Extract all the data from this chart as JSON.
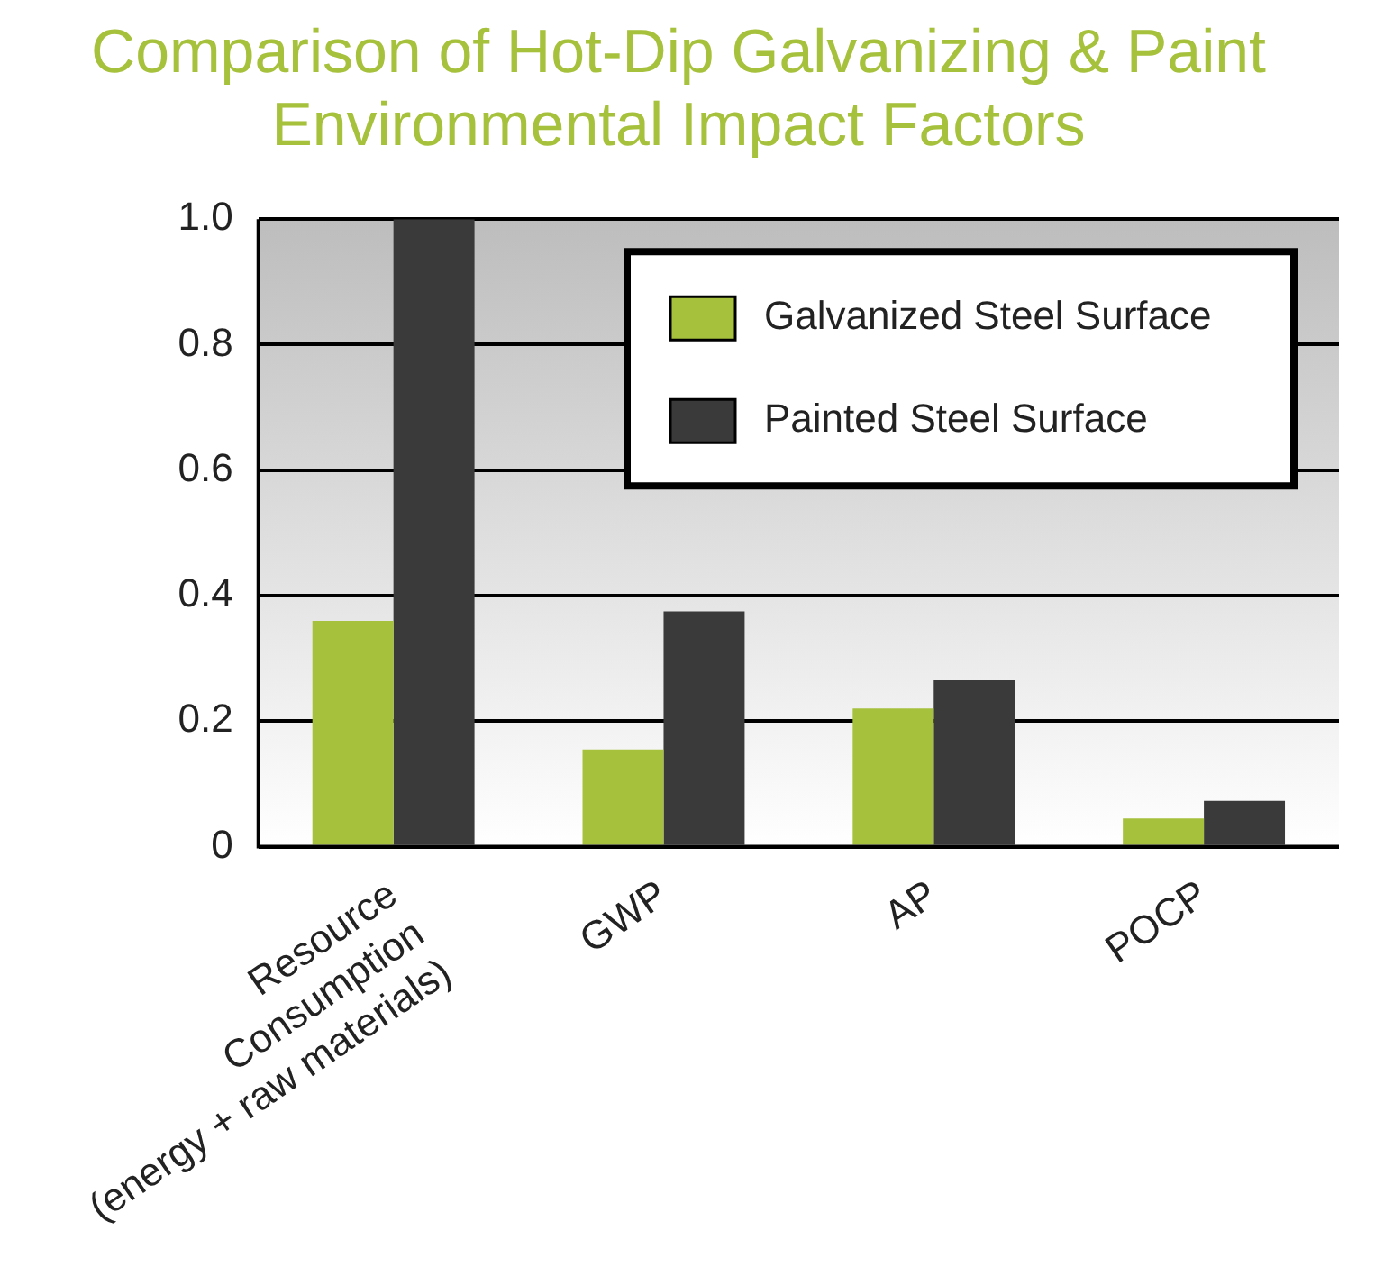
{
  "chart_data": {
    "type": "bar",
    "title": "Comparison of Hot-Dip Galvanizing & Paint\nEnvironmental Impact Factors",
    "categories": [
      "Resource\nConsumption\n(energy + raw materials)",
      "GWP",
      "AP",
      "POCP"
    ],
    "series": [
      {
        "name": "Galvanized Steel Surface",
        "color": "#a6c13c",
        "values": [
          0.36,
          0.155,
          0.22,
          0.045
        ]
      },
      {
        "name": "Painted Steel Surface",
        "color": "#3a3a3a",
        "values": [
          1.0,
          0.375,
          0.265,
          0.073
        ]
      }
    ],
    "ylim": [
      0,
      1.0
    ],
    "yticks": [
      {
        "value": 0,
        "label": "0"
      },
      0.2,
      0.4,
      0.6,
      0.8,
      {
        "value": 1.0,
        "label": "1.0"
      }
    ],
    "grid": "y",
    "legend": "top right"
  }
}
